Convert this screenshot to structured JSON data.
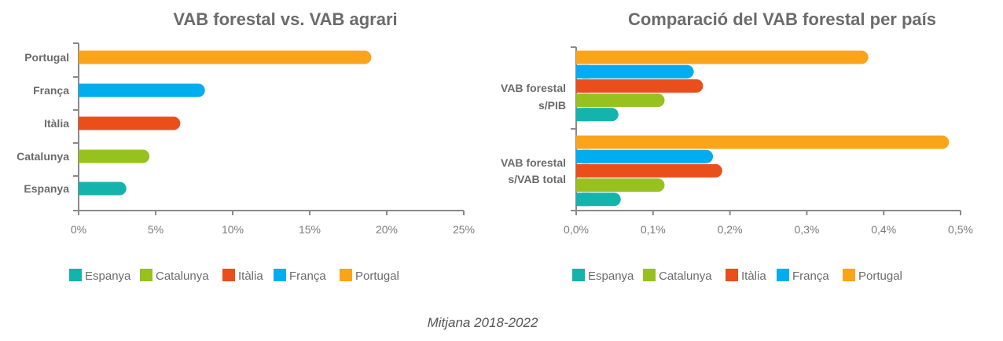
{
  "colors": {
    "Espanya": "#14b3ac",
    "Catalunya": "#96c11f",
    "Itàlia": "#e94e1b",
    "França": "#00adef",
    "Portugal": "#faa41a",
    "axis": "#8a8a8a"
  },
  "legend": [
    "Espanya",
    "Catalunya",
    "Itàlia",
    "França",
    "Portugal"
  ],
  "footer": "Mitjana 2018-2022",
  "chart_data": [
    {
      "type": "bar",
      "orientation": "horizontal",
      "title": "VAB forestal vs. VAB agrari",
      "categories": [
        "Portugal",
        "França",
        "Itàlia",
        "Catalunya",
        "Espanya"
      ],
      "values": [
        19.0,
        8.2,
        6.6,
        4.6,
        3.1
      ],
      "xlim": [
        0,
        25
      ],
      "xticks": [
        0,
        5,
        10,
        15,
        20,
        25
      ],
      "xtick_labels": [
        "0%",
        "5%",
        "10%",
        "15%",
        "20%",
        "25%"
      ],
      "legend_placement": "bottom"
    },
    {
      "type": "bar",
      "orientation": "horizontal",
      "title": "Comparació del VAB forestal per país",
      "groups": [
        {
          "label_lines": [
            "VAB forestal",
            "s/PIB"
          ],
          "values": {
            "Portugal": 0.38,
            "França": 0.153,
            "Itàlia": 0.165,
            "Catalunya": 0.115,
            "Espanya": 0.055
          }
        },
        {
          "label_lines": [
            "VAB forestal",
            "s/VAB total"
          ],
          "values": {
            "Portugal": 0.485,
            "França": 0.178,
            "Itàlia": 0.19,
            "Catalunya": 0.115,
            "Espanya": 0.058
          }
        }
      ],
      "xlim": [
        0,
        0.5
      ],
      "xticks": [
        0,
        0.1,
        0.2,
        0.3,
        0.4,
        0.5
      ],
      "xtick_labels": [
        "0,0%",
        "0,1%",
        "0,2%",
        "0,3%",
        "0,4%",
        "0,5%"
      ],
      "legend_placement": "bottom"
    }
  ]
}
